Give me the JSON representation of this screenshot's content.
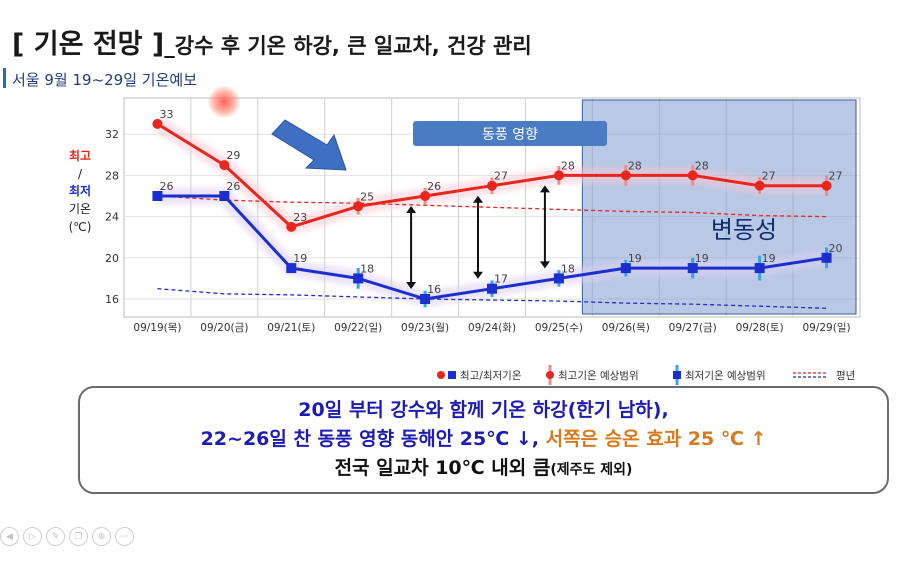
{
  "page": {
    "title_main": "[ 기온 전망 ]",
    "title_rest": "_강수 후 기온 하강, 큰 일교차, 건강 관리",
    "subtitle": "서울 9월 19~29일 기온예보"
  },
  "chart_data": {
    "type": "line",
    "title": "서울 9월 19~29일 기온예보",
    "x": [
      "09/19(목)",
      "09/20(금)",
      "09/21(토)",
      "09/22(일)",
      "09/23(월)",
      "09/24(화)",
      "09/25(수)",
      "09/26(목)",
      "09/27(금)",
      "09/28(토)",
      "09/29(일)"
    ],
    "ylim": [
      14,
      35
    ],
    "yticks": [
      16,
      20,
      24,
      28,
      32
    ],
    "ylabel_parts": [
      "최고",
      "/",
      "최저",
      "기온",
      "(℃)"
    ],
    "series": [
      {
        "name": "최고기온",
        "color": "#e8261c",
        "values": [
          33,
          29,
          23,
          25,
          26,
          27,
          28,
          28,
          28,
          27,
          27
        ],
        "labels": [
          "33",
          "29",
          "23",
          "25",
          "26",
          "27",
          "28",
          "28",
          "28",
          "27",
          "27"
        ]
      },
      {
        "name": "최저기온",
        "color": "#1b2fcf",
        "values": [
          26,
          26,
          19,
          18,
          16,
          17,
          18,
          19,
          19,
          19,
          20
        ],
        "labels": [
          "26",
          "26",
          "19",
          "18",
          "16",
          "17",
          "18",
          "19",
          "19",
          "19",
          "20"
        ]
      },
      {
        "name": "평년 최고",
        "color": "#e8261c",
        "dashed": true,
        "values": [
          26,
          25.6,
          25.4,
          25.3,
          25.1,
          24.9,
          24.7,
          24.5,
          24.4,
          24.1,
          24.0
        ]
      },
      {
        "name": "평년 최저",
        "color": "#1b2fcf",
        "dashed": true,
        "values": [
          17,
          16.5,
          16.4,
          16.2,
          16.0,
          15.9,
          15.8,
          15.6,
          15.5,
          15.3,
          15.1
        ]
      }
    ],
    "range_bars": {
      "high": [
        null,
        null,
        null,
        [
          24.2,
          25.8
        ],
        [
          25.2,
          26.8
        ],
        [
          26.2,
          27.8
        ],
        [
          27.1,
          28.9
        ],
        [
          27,
          29
        ],
        [
          27,
          29
        ],
        [
          26.2,
          27.8
        ],
        [
          26,
          28
        ]
      ],
      "low": [
        null,
        null,
        null,
        [
          17,
          19
        ],
        [
          15.2,
          16.8
        ],
        [
          16.2,
          17.8
        ],
        [
          17.2,
          18.8
        ],
        [
          18.2,
          19.8
        ],
        [
          18,
          20
        ],
        [
          17.8,
          20.2
        ],
        [
          19,
          21
        ]
      ]
    },
    "annotations": {
      "easterly_label": "동풍 영향",
      "variability_label": "변동성",
      "variability_from_index": 7
    },
    "legend": {
      "items": [
        "최고/최저기온",
        "최고기온 예상범위",
        "최저기온 예상범위",
        "평년"
      ],
      "placement": "bottom-right"
    },
    "grid": true
  },
  "summary": {
    "line1": "20일 부터 강수와 함께 기온 하강(한기 남하),",
    "line2_blue": "22~26일 찬 동풍 영향 동해안 25℃ ↓, ",
    "line2_orange": "서쪽은 승온 효과 25 ℃ ↑",
    "line3_main": "전국 일교차 10℃ 내외 큼",
    "line3_small": "(제주도 제외)"
  },
  "colors": {
    "high": "#e8261c",
    "low": "#1b2fcf",
    "band_high": "#f8c8d4",
    "band_low": "#ddd0f2",
    "variability_box": "#7e9bcf",
    "arrow": "#3e6fc0",
    "label_box": "#4a7cc4"
  },
  "toolbar_icons": [
    "play-back-icon",
    "play-icon",
    "pen-icon",
    "copy-icon",
    "zoom-icon",
    "more-icon"
  ]
}
